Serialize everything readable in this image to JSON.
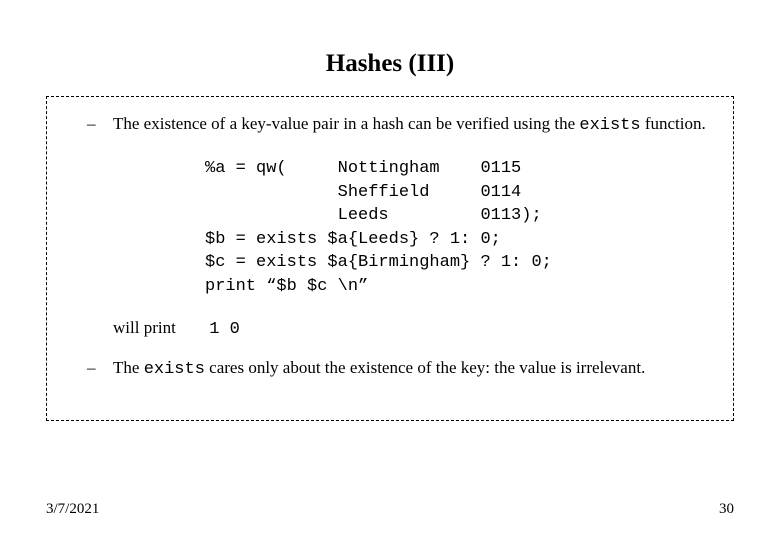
{
  "title": "Hashes (III)",
  "bullets": {
    "first": {
      "pre": "The existence of a key-value pair in a hash can be verified using the ",
      "code": "exists",
      "post": " function."
    },
    "second": {
      "pre": "The ",
      "code": "exists",
      "post": " cares only about the existence of the key: the value is irrelevant."
    }
  },
  "code": "%a = qw(     Nottingham    0115\n             Sheffield     0114\n             Leeds         0113);\n$b = exists $a{Leeds} ? 1: 0;\n$c = exists $a{Birmingham} ? 1: 0;\nprint “$b $c \\n”",
  "willprint": {
    "label": "will print",
    "value": "1 0"
  },
  "footer": {
    "date": "3/7/2021",
    "page": "30"
  },
  "style": {
    "background": "#ffffff",
    "text_color": "#000000",
    "border_style": "dashed",
    "border_color": "#000000",
    "title_fontsize": 25,
    "body_fontsize": 17,
    "mono_font": "Courier New",
    "serif_font": "Times New Roman"
  }
}
